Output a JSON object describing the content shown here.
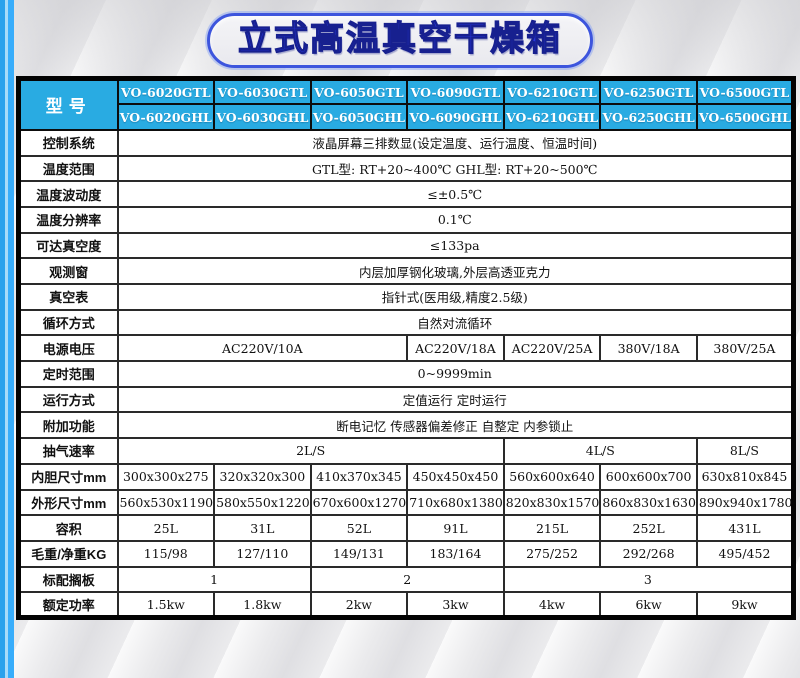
{
  "page": {
    "title": "立式高温真空干燥箱"
  },
  "colors": {
    "header_bg": "#29abe2",
    "header_text": "#ffffff",
    "title_text": "#2736e0",
    "title_border": "#3d55dd",
    "table_border": "#030303",
    "stripe_blue_outer": "#2aa1ec",
    "stripe_blue_inner": "#38adfb",
    "page_bg": "#ebebed"
  },
  "table": {
    "model_label": "型号",
    "model_rows": [
      [
        "VO-6020GTL",
        "VO-6030GTL",
        "VO-6050GTL",
        "VO-6090GTL",
        "VO-6210GTL",
        "VO-6250GTL",
        "VO-6500GTL"
      ],
      [
        "VO-6020GHL",
        "VO-6030GHL",
        "VO-6050GHL",
        "VO-6090GHL",
        "VO-6210GHL",
        "VO-6250GHL",
        "VO-6500GHL"
      ]
    ],
    "rows": [
      {
        "label": "控制系统",
        "cells": [
          {
            "text": "液晶屏幕三排数显(设定温度、运行温度、恒温时间)",
            "span": 7
          }
        ]
      },
      {
        "label": "温度范围",
        "cells": [
          {
            "text": "GTL型: RT+20~400℃   GHL型: RT+20~500℃",
            "span": 7
          }
        ]
      },
      {
        "label": "温度波动度",
        "cells": [
          {
            "text": "≤±0.5℃",
            "span": 7
          }
        ]
      },
      {
        "label": "温度分辨率",
        "cells": [
          {
            "text": "0.1℃",
            "span": 7
          }
        ]
      },
      {
        "label": "可达真空度",
        "cells": [
          {
            "text": "≤133pa",
            "span": 7
          }
        ]
      },
      {
        "label": "观测窗",
        "cells": [
          {
            "text": "内层加厚钢化玻璃,外层高透亚克力",
            "span": 7
          }
        ]
      },
      {
        "label": "真空表",
        "cells": [
          {
            "text": "指针式(医用级,精度2.5级)",
            "span": 7
          }
        ]
      },
      {
        "label": "循环方式",
        "cells": [
          {
            "text": "自然对流循环",
            "span": 7
          }
        ]
      },
      {
        "label": "电源电压",
        "cells": [
          {
            "text": "AC220V/10A",
            "span": 3
          },
          {
            "text": "AC220V/18A",
            "span": 1
          },
          {
            "text": "AC220V/25A",
            "span": 1
          },
          {
            "text": "380V/18A",
            "span": 1
          },
          {
            "text": "380V/25A",
            "span": 1
          }
        ]
      },
      {
        "label": "定时范围",
        "cells": [
          {
            "text": "0~9999min",
            "span": 7
          }
        ]
      },
      {
        "label": "运行方式",
        "cells": [
          {
            "text": "定值运行 定时运行",
            "span": 7
          }
        ]
      },
      {
        "label": "附加功能",
        "cells": [
          {
            "text": "断电记忆 传感器偏差修正 自整定 内参锁止",
            "span": 7
          }
        ]
      },
      {
        "label": "抽气速率",
        "cells": [
          {
            "text": "2L/S",
            "span": 4
          },
          {
            "text": "4L/S",
            "span": 2
          },
          {
            "text": "8L/S",
            "span": 1
          }
        ]
      },
      {
        "label": "内胆尺寸mm",
        "cells": [
          {
            "text": "300x300x275",
            "span": 1
          },
          {
            "text": "320x320x300",
            "span": 1
          },
          {
            "text": "410x370x345",
            "span": 1
          },
          {
            "text": "450x450x450",
            "span": 1
          },
          {
            "text": "560x600x640",
            "span": 1
          },
          {
            "text": "600x600x700",
            "span": 1
          },
          {
            "text": "630x810x845",
            "span": 1
          }
        ]
      },
      {
        "label": "外形尺寸mm",
        "cells": [
          {
            "text": "560x530x1190",
            "span": 1
          },
          {
            "text": "580x550x1220",
            "span": 1
          },
          {
            "text": "670x600x1270",
            "span": 1
          },
          {
            "text": "710x680x1380",
            "span": 1
          },
          {
            "text": "820x830x1570",
            "span": 1
          },
          {
            "text": "860x830x1630",
            "span": 1
          },
          {
            "text": "890x940x1780",
            "span": 1
          }
        ]
      },
      {
        "label": "容积",
        "cells": [
          {
            "text": "25L",
            "span": 1
          },
          {
            "text": "31L",
            "span": 1
          },
          {
            "text": "52L",
            "span": 1
          },
          {
            "text": "91L",
            "span": 1
          },
          {
            "text": "215L",
            "span": 1
          },
          {
            "text": "252L",
            "span": 1
          },
          {
            "text": "431L",
            "span": 1
          }
        ]
      },
      {
        "label": "毛重/净重KG",
        "cells": [
          {
            "text": "115/98",
            "span": 1
          },
          {
            "text": "127/110",
            "span": 1
          },
          {
            "text": "149/131",
            "span": 1
          },
          {
            "text": "183/164",
            "span": 1
          },
          {
            "text": "275/252",
            "span": 1
          },
          {
            "text": "292/268",
            "span": 1
          },
          {
            "text": "495/452",
            "span": 1
          }
        ]
      },
      {
        "label": "标配搁板",
        "cells": [
          {
            "text": "1",
            "span": 2
          },
          {
            "text": "2",
            "span": 2
          },
          {
            "text": "3",
            "span": 3
          }
        ]
      },
      {
        "label": "额定功率",
        "cells": [
          {
            "text": "1.5kw",
            "span": 1
          },
          {
            "text": "1.8kw",
            "span": 1
          },
          {
            "text": "2kw",
            "span": 1
          },
          {
            "text": "3kw",
            "span": 1
          },
          {
            "text": "4kw",
            "span": 1
          },
          {
            "text": "6kw",
            "span": 1
          },
          {
            "text": "9kw",
            "span": 1
          }
        ]
      }
    ]
  }
}
